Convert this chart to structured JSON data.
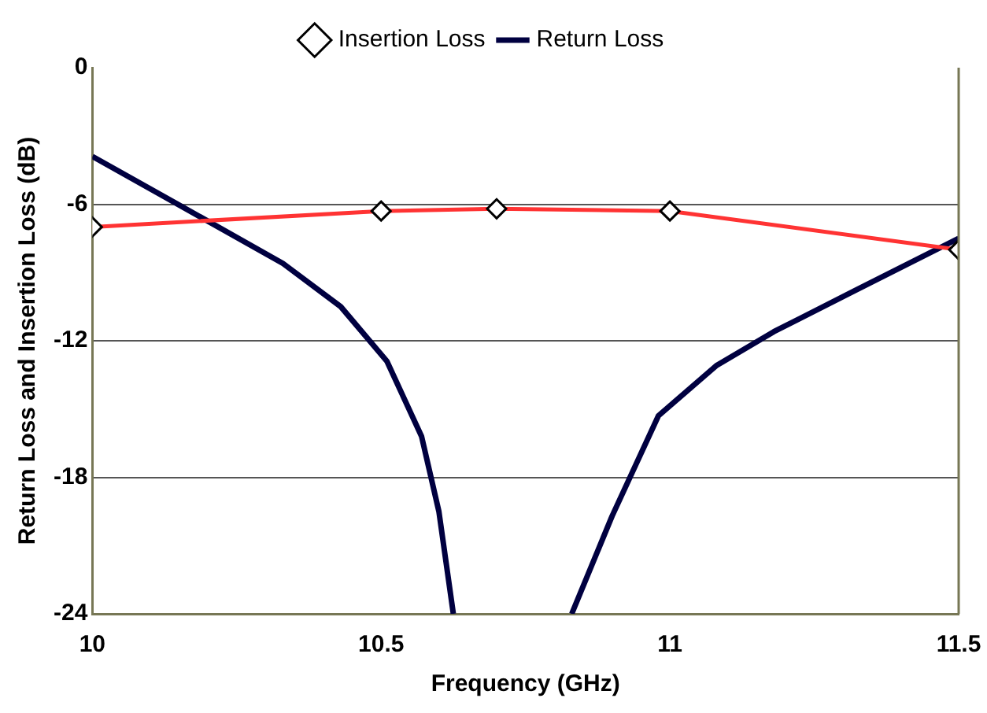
{
  "chart_data": {
    "type": "line",
    "xlabel": "Frequency (GHz)",
    "ylabel": "Return Loss and Insertion Loss (dB)",
    "xlim": [
      10,
      11.5
    ],
    "xticks": [
      10,
      10.5,
      11,
      11.5
    ],
    "ylim": [
      -24,
      0
    ],
    "yticks": [
      0,
      -6,
      -12,
      -18,
      -24
    ],
    "grid": "y",
    "legend": "top",
    "series": [
      {
        "name": "Insertion Loss",
        "color": "#ff3333",
        "marker": "diamond",
        "x": [
          10,
          10.5,
          10.7,
          11,
          11.5
        ],
        "values": [
          -7.0,
          -6.3,
          -6.2,
          -6.3,
          -8.0
        ]
      },
      {
        "name": "Return Loss",
        "color": "#000040",
        "marker": "none",
        "x": [
          10,
          10.19,
          10.33,
          10.43,
          10.51,
          10.57,
          10.6,
          10.625,
          10.73,
          10.83,
          10.9,
          10.98,
          11.08,
          11.18,
          11.32,
          11.5
        ],
        "values": [
          -3.9,
          -6.6,
          -8.6,
          -10.5,
          -12.9,
          -16.2,
          -19.5,
          -24,
          null,
          -24,
          -19.7,
          -15.3,
          -13.1,
          -11.6,
          -9.8,
          -7.5
        ]
      }
    ]
  }
}
